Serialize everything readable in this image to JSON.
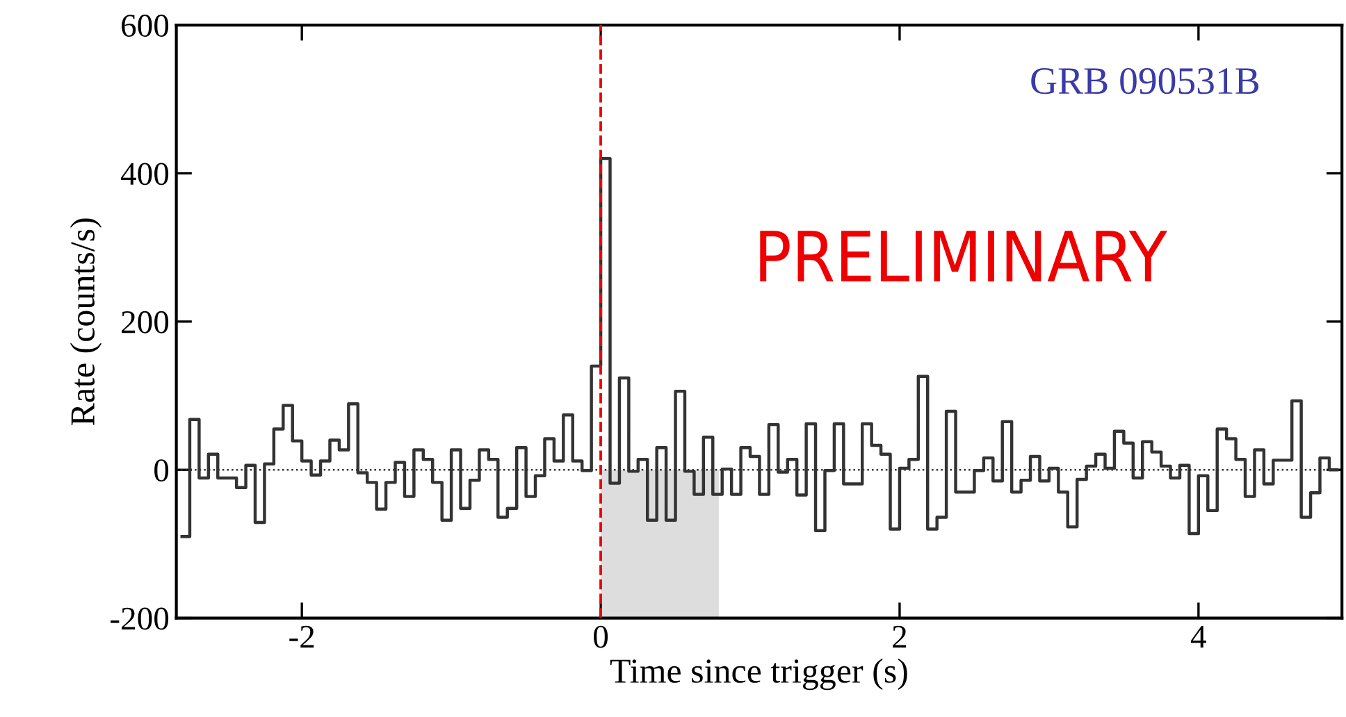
{
  "chart_data": {
    "type": "histogram",
    "xlabel": "Time since trigger (s)",
    "ylabel": "Rate (counts/s)",
    "annotations": [
      "GRB 090531B",
      "PRELIMINARY"
    ],
    "bins": [
      -2.8125,
      -2.75,
      -2.6875,
      -2.625,
      -2.5625,
      -2.5,
      -2.4375,
      -2.375,
      -2.3125,
      -2.25,
      -2.1875,
      -2.125,
      -2.0625,
      -2.0,
      -1.9375,
      -1.875,
      -1.8125,
      -1.75,
      -1.6875,
      -1.625,
      -1.5625,
      -1.5,
      -1.4375,
      -1.375,
      -1.3125,
      -1.25,
      -1.1875,
      -1.125,
      -1.0625,
      -1.0,
      -0.9375,
      -0.875,
      -0.8125,
      -0.75,
      -0.6875,
      -0.625,
      -0.5625,
      -0.5,
      -0.4375,
      -0.375,
      -0.3125,
      -0.25,
      -0.1875,
      -0.125,
      -0.0625,
      0.0,
      0.0625,
      0.125,
      0.1875,
      0.25,
      0.3125,
      0.375,
      0.4375,
      0.5,
      0.5625,
      0.625,
      0.6875,
      0.75,
      0.8125,
      0.875,
      0.9375,
      1.0,
      1.0625,
      1.125,
      1.1875,
      1.25,
      1.3125,
      1.375,
      1.4375,
      1.5,
      1.5625,
      1.625,
      1.6875,
      1.75,
      1.8125,
      1.875,
      1.9375,
      2.0,
      2.0625,
      2.125,
      2.1875,
      2.25,
      2.3125,
      2.375,
      2.4375,
      2.5,
      2.5625,
      2.625,
      2.6875,
      2.75,
      2.8125,
      2.875,
      2.9375,
      3.0,
      3.0625,
      3.125,
      3.1875,
      3.25,
      3.3125,
      3.375,
      3.4375,
      3.5,
      3.5625,
      3.625,
      3.6875,
      3.75,
      3.8125,
      3.875,
      3.9375,
      4.0,
      4.0625,
      4.125,
      4.1875,
      4.25,
      4.3125,
      4.375,
      4.4375,
      4.5,
      4.5625,
      4.625,
      4.6875,
      4.75,
      4.8125,
      4.875,
      4.9375
    ],
    "values": [
      -90,
      68,
      -11,
      21,
      -11,
      -11,
      -24,
      6,
      -71,
      8,
      55,
      87,
      39,
      12,
      -7,
      12,
      40,
      27,
      89,
      -4,
      -17,
      -53,
      -17,
      10,
      -36,
      27,
      14,
      -17,
      -68,
      27,
      -52,
      -14,
      27,
      14,
      -64,
      -52,
      30,
      -36,
      -8,
      42,
      12,
      74,
      12,
      -1,
      140,
      420,
      -18,
      124,
      -2,
      14,
      -68,
      30,
      -68,
      106,
      -2,
      -33,
      44,
      -33,
      1,
      -33,
      30,
      18,
      -33,
      61,
      -3,
      14,
      -34,
      62,
      -82,
      -1,
      62,
      -19,
      -19,
      62,
      33,
      21,
      -80,
      2,
      14,
      126,
      -80,
      -64,
      79,
      -30,
      -30,
      -1,
      16,
      -15,
      65,
      -30,
      -14,
      18,
      -15,
      2,
      -30,
      -77,
      -13,
      5,
      21,
      2,
      52,
      36,
      -11,
      38,
      24,
      5,
      -11,
      6,
      -86,
      -8,
      -55,
      55,
      42,
      14,
      -36,
      27,
      -19,
      13,
      13,
      93,
      -64,
      -31,
      16,
      0
    ],
    "color": "#333333",
    "xlim": [
      -2.84,
      4.96
    ],
    "ylim": [
      -200,
      600
    ],
    "xticks": [
      -2,
      0,
      2,
      4
    ],
    "yticks": [
      -200,
      0,
      200,
      400,
      600
    ],
    "ref_lines": [
      {
        "axis": "x",
        "value": 0,
        "color": "#ee0000",
        "line_style": "dashed"
      },
      {
        "axis": "y",
        "value": 0,
        "color": "#333333",
        "line_style": "dotted"
      }
    ],
    "bands": [
      {
        "axis": "x",
        "from": 0,
        "to": 0.79,
        "color": "#dddddd"
      }
    ],
    "grid": false,
    "legend": false
  }
}
